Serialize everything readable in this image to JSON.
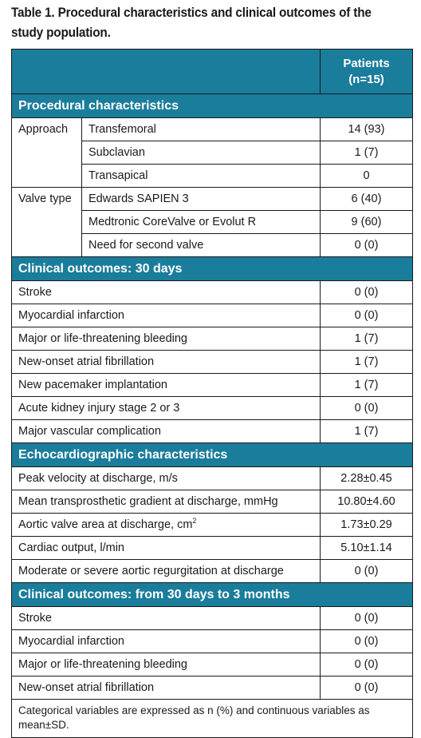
{
  "caption": "Table 1. Procedural characteristics and clinical outcomes of the study population.",
  "header": {
    "col_label_line1": "Patients",
    "col_label_line2": "(n=15)"
  },
  "procedural": {
    "title": "Procedural characteristics",
    "approach_label": "Approach",
    "approach": [
      {
        "label": "Transfemoral",
        "value": "14 (93)"
      },
      {
        "label": "Subclavian",
        "value": "1 (7)"
      },
      {
        "label": "Transapical",
        "value": "0"
      }
    ],
    "valve_label": "Valve type",
    "valve": [
      {
        "label": "Edwards SAPIEN 3",
        "value": "6 (40)"
      },
      {
        "label": "Medtronic CoreValve or Evolut R",
        "value": "9 (60)"
      },
      {
        "label": "Need for second valve",
        "value": "0 (0)"
      }
    ]
  },
  "outcomes_30": {
    "title": "Clinical outcomes: 30 days",
    "rows": [
      {
        "label": "Stroke",
        "value": "0 (0)"
      },
      {
        "label": "Myocardial infarction",
        "value": "0 (0)"
      },
      {
        "label": "Major or life-threatening bleeding",
        "value": "1 (7)"
      },
      {
        "label": "New-onset atrial fibrillation",
        "value": "1 (7)"
      },
      {
        "label": "New pacemaker implantation",
        "value": "1 (7)"
      },
      {
        "label": "Acute kidney injury stage 2 or 3",
        "value": "0 (0)"
      },
      {
        "label": "Major vascular complication",
        "value": "1 (7)"
      }
    ]
  },
  "echo": {
    "title": "Echocardiographic characteristics",
    "rows": [
      {
        "label": "Peak velocity at discharge, m/s",
        "value": "2.28±0.45"
      },
      {
        "label": "Mean transprosthetic gradient at discharge, mmHg",
        "value": "10.80±4.60"
      },
      {
        "label": "Aortic valve area at discharge, cm",
        "sup": "2",
        "value": "1.73±0.29"
      },
      {
        "label": "Cardiac output, l/min",
        "value": "5.10±1.14"
      },
      {
        "label": "Moderate or severe aortic regurgitation at discharge",
        "value": "0 (0)"
      }
    ]
  },
  "outcomes_3m": {
    "title": "Clinical outcomes: from 30 days to 3 months",
    "rows": [
      {
        "label": "Stroke",
        "value": "0 (0)"
      },
      {
        "label": "Myocardial infarction",
        "value": "0 (0)"
      },
      {
        "label": "Major or life-threatening bleeding",
        "value": "0 (0)"
      },
      {
        "label": "New-onset atrial fibrillation",
        "value": "0 (0)"
      }
    ]
  },
  "footnote": "Categorical variables are expressed as n (%) and continuous variables as mean±SD.",
  "colors": {
    "header_bg": "#1a7d9c",
    "header_text": "#ffffff",
    "border": "#1a1a1a"
  }
}
